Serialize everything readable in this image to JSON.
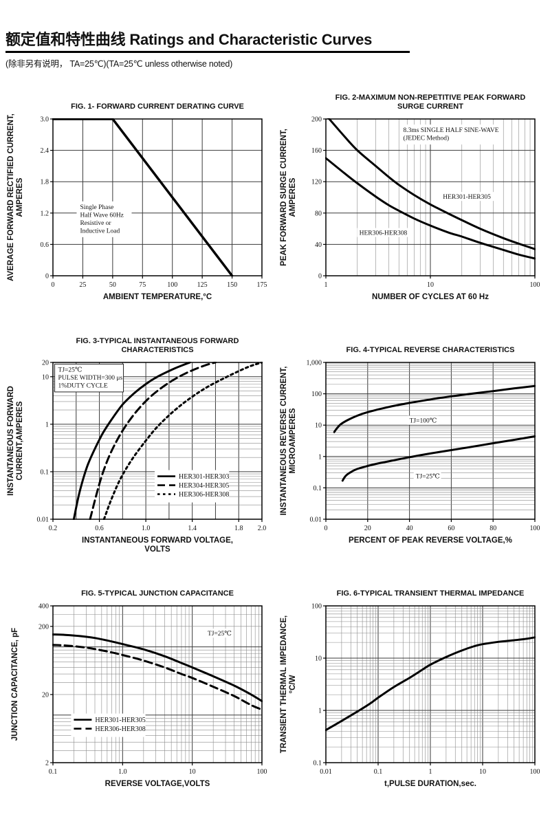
{
  "header": {
    "title": "额定值和特性曲线 Ratings and Characteristic Curves",
    "note": "(除非另有说明， TA=25℃)(TA=25℃  unless otherwise noted)"
  },
  "chart_data": [
    {
      "type": "line",
      "title": [
        "FIG. 1- FORWARD CURRENT DERATING CURVE"
      ],
      "xlabel": [
        "AMBIENT TEMPERATURE,°C"
      ],
      "ylabel": [
        "AVERAGE FORWARD RECTIFIED CURRENT,",
        "AMPERES"
      ],
      "x": {
        "scale": "linear",
        "min": 0,
        "max": 175,
        "ticks": [
          0,
          25,
          50,
          75,
          100,
          125,
          150,
          175
        ],
        "labels": [
          "0",
          "25",
          "50",
          "75",
          "100",
          "125",
          "150",
          "175"
        ],
        "grid_step": 25
      },
      "y": {
        "scale": "linear",
        "min": 0,
        "max": 3,
        "ticks": [
          0,
          0.6,
          1.2,
          1.8,
          2.4,
          3.0
        ],
        "labels": [
          "0",
          "0.6",
          "1.2",
          "1.8",
          "2.4",
          "3.0"
        ],
        "grid_step": 0.6
      },
      "annotations": [
        {
          "lines": [
            "Single Phase",
            "Half Wave 60Hz",
            "Resistive or",
            "Inductive Load"
          ],
          "fx": 0.12,
          "fy": 0.53,
          "boxed": false
        }
      ],
      "labels": [],
      "series": [
        {
          "name": "IF(AV)",
          "style": "solid",
          "width": 3.5,
          "smooth": false,
          "points": [
            [
              0,
              3
            ],
            [
              50,
              3
            ],
            [
              150,
              0
            ]
          ]
        }
      ]
    },
    {
      "type": "line",
      "title": [
        "FIG. 2-MAXIMUM NON-REPETITIVE PEAK FORWARD",
        "SURGE CURRENT"
      ],
      "xlabel": [
        "NUMBER OF CYCLES AT 60 Hz"
      ],
      "ylabel": [
        "PEAK  FORWARD SURGE CURRENT,",
        "AMPERES"
      ],
      "x": {
        "scale": "log",
        "min": 1,
        "max": 100,
        "ticks": [
          1,
          10,
          100
        ],
        "labels": [
          "1",
          "10",
          "100"
        ]
      },
      "y": {
        "scale": "linear",
        "min": 0,
        "max": 200,
        "ticks": [
          0,
          40,
          80,
          120,
          160,
          200
        ],
        "labels": [
          "0",
          "40",
          "80",
          "120",
          "160",
          "200"
        ],
        "grid_step": 40
      },
      "annotations": [
        {
          "lines": [
            "8.3ms SINGLE HALF SINE-WAVE",
            "(JEDEC Method)"
          ],
          "fx": 0.36,
          "fy": 0.04,
          "boxed": false
        }
      ],
      "labels": [
        {
          "text": "HER301-HER305",
          "fx": 0.56,
          "fy": 0.47
        },
        {
          "text": "HER306-HER308",
          "fx": 0.16,
          "fy": 0.7
        }
      ],
      "series": [
        {
          "name": "HER301-HER305",
          "style": "solid",
          "smooth": true,
          "points": [
            [
              1,
              205
            ],
            [
              1.5,
              178
            ],
            [
              2,
              160
            ],
            [
              3,
              140
            ],
            [
              4,
              126
            ],
            [
              5,
              116
            ],
            [
              7,
              103
            ],
            [
              10,
              91
            ],
            [
              15,
              79
            ],
            [
              20,
              71
            ],
            [
              30,
              60
            ],
            [
              50,
              48
            ],
            [
              70,
              41
            ],
            [
              100,
              34
            ]
          ]
        },
        {
          "name": "HER306-HER308",
          "style": "solid",
          "smooth": true,
          "points": [
            [
              1,
              150
            ],
            [
              1.5,
              131
            ],
            [
              2,
              118
            ],
            [
              3,
              101
            ],
            [
              4,
              90
            ],
            [
              5,
              83
            ],
            [
              7,
              73
            ],
            [
              10,
              64
            ],
            [
              15,
              55
            ],
            [
              20,
              50
            ],
            [
              30,
              42
            ],
            [
              50,
              33
            ],
            [
              70,
              27
            ],
            [
              100,
              22
            ]
          ]
        }
      ]
    },
    {
      "type": "line",
      "title": [
        "FIG. 3-TYPICAL INSTANTANEOUS FORWARD",
        "CHARACTERISTICS"
      ],
      "xlabel": [
        "INSTANTANEOUS FORWARD VOLTAGE,",
        "VOLTS"
      ],
      "ylabel": [
        "INSTANTANEOUS FORWARD",
        "CURRENT,AMPERES"
      ],
      "x": {
        "scale": "linear",
        "min": 0.2,
        "max": 2.0,
        "ticks": [
          0.2,
          0.6,
          1.0,
          1.4,
          1.8,
          2.0
        ],
        "labels": [
          "0.2",
          "0.6",
          "1.0",
          "1.4",
          "1.8",
          "2.0"
        ],
        "grid_step": 0.2
      },
      "y": {
        "scale": "log",
        "min": 0.01,
        "max": 20,
        "ticks": [
          20,
          10,
          1,
          0.1,
          0.01
        ],
        "labels": [
          "20",
          "10",
          "1",
          "0.1",
          "0.01"
        ]
      },
      "annotations": [
        {
          "lines": [
            "TJ=25℃",
            "PULSE WIDTH=300 μs",
            "1%DUTY CYCLE"
          ],
          "fx": 0.015,
          "fy": 0.015,
          "boxed": true
        }
      ],
      "labels": [],
      "legend": {
        "fx": 0.5,
        "fy": 0.7,
        "entries": [
          {
            "name": "HER301-HER303",
            "style": "solid"
          },
          {
            "name": "HER304-HER305",
            "style": "dashed"
          },
          {
            "name": "HER306-HER308",
            "style": "dotted"
          }
        ]
      },
      "series": [
        {
          "name": "HER301-HER303",
          "style": "solid",
          "smooth": true,
          "points": [
            [
              0.38,
              0.01
            ],
            [
              0.42,
              0.03
            ],
            [
              0.46,
              0.07
            ],
            [
              0.5,
              0.14
            ],
            [
              0.56,
              0.3
            ],
            [
              0.63,
              0.65
            ],
            [
              0.7,
              1.2
            ],
            [
              0.8,
              2.6
            ],
            [
              0.9,
              4.5
            ],
            [
              1.0,
              7
            ],
            [
              1.1,
              10
            ],
            [
              1.25,
              15
            ],
            [
              1.38,
              20
            ]
          ]
        },
        {
          "name": "HER304-HER305",
          "style": "dashed",
          "smooth": true,
          "points": [
            [
              0.52,
              0.01
            ],
            [
              0.57,
              0.03
            ],
            [
              0.62,
              0.08
            ],
            [
              0.68,
              0.2
            ],
            [
              0.75,
              0.45
            ],
            [
              0.83,
              0.95
            ],
            [
              0.93,
              2
            ],
            [
              1.05,
              4
            ],
            [
              1.2,
              7.5
            ],
            [
              1.35,
              12
            ],
            [
              1.5,
              17
            ],
            [
              1.6,
              20
            ]
          ]
        },
        {
          "name": "HER306-HER308",
          "style": "dotted",
          "smooth": true,
          "points": [
            [
              0.64,
              0.01
            ],
            [
              0.7,
              0.025
            ],
            [
              0.78,
              0.07
            ],
            [
              0.88,
              0.18
            ],
            [
              1.0,
              0.45
            ],
            [
              1.12,
              1.0
            ],
            [
              1.3,
              2.5
            ],
            [
              1.5,
              5.5
            ],
            [
              1.7,
              10
            ],
            [
              1.88,
              16
            ],
            [
              2.0,
              20
            ]
          ]
        }
      ]
    },
    {
      "type": "line",
      "title": [
        "FIG. 4-TYPICAL REVERSE CHARACTERISTICS"
      ],
      "xlabel": [
        "PERCENT OF PEAK REVERSE VOLTAGE,%"
      ],
      "ylabel": [
        "INSTANTANEOUS REVERSE CURRENT,",
        "MICROAMPERES"
      ],
      "x": {
        "scale": "linear",
        "min": 0,
        "max": 100,
        "ticks": [
          0,
          20,
          40,
          60,
          80,
          100
        ],
        "labels": [
          "0",
          "20",
          "40",
          "60",
          "80",
          "100"
        ],
        "grid_step": 20
      },
      "y": {
        "scale": "log",
        "min": 0.01,
        "max": 1000,
        "ticks": [
          1000,
          100,
          10,
          1,
          0.1,
          0.01
        ],
        "labels": [
          "1,000",
          "100",
          "10",
          "1",
          "0.1",
          "0.01"
        ]
      },
      "annotations": [],
      "labels": [
        {
          "text": "TJ=100℃",
          "fx": 0.4,
          "fy": 0.345
        },
        {
          "text": "TJ=25℃",
          "fx": 0.43,
          "fy": 0.7
        }
      ],
      "series": [
        {
          "name": "TJ=100C",
          "style": "solid",
          "smooth": true,
          "points": [
            [
              4,
              6
            ],
            [
              5,
              7.5
            ],
            [
              7,
              10.5
            ],
            [
              10,
              14
            ],
            [
              15,
              20
            ],
            [
              20,
              26
            ],
            [
              30,
              38
            ],
            [
              40,
              51
            ],
            [
              50,
              66
            ],
            [
              60,
              83
            ],
            [
              70,
              101
            ],
            [
              80,
              122
            ],
            [
              90,
              148
            ],
            [
              100,
              178
            ]
          ]
        },
        {
          "name": "TJ=25C",
          "style": "solid",
          "smooth": true,
          "points": [
            [
              8,
              0.17
            ],
            [
              9,
              0.22
            ],
            [
              10,
              0.26
            ],
            [
              12,
              0.32
            ],
            [
              15,
              0.4
            ],
            [
              20,
              0.5
            ],
            [
              25,
              0.6
            ],
            [
              30,
              0.7
            ],
            [
              40,
              0.95
            ],
            [
              50,
              1.25
            ],
            [
              60,
              1.6
            ],
            [
              70,
              2.05
            ],
            [
              80,
              2.65
            ],
            [
              90,
              3.4
            ],
            [
              100,
              4.4
            ]
          ]
        }
      ]
    },
    {
      "type": "line",
      "title": [
        "FIG. 5-TYPICAL JUNCTION CAPACITANCE"
      ],
      "xlabel": [
        "REVERSE VOLTAGE,VOLTS"
      ],
      "ylabel": [
        "JUNCTION CAPACITANCE, pF"
      ],
      "x": {
        "scale": "log",
        "min": 0.1,
        "max": 100,
        "ticks": [
          0.1,
          1,
          10,
          100
        ],
        "labels": [
          "0.1",
          "1.0",
          "10",
          "100"
        ]
      },
      "y": {
        "scale": "log",
        "min": 2,
        "max": 400,
        "ticks": [
          400,
          200,
          20,
          2
        ],
        "labels": [
          "400",
          "200",
          "20",
          "2"
        ]
      },
      "annotations": [],
      "labels": [
        {
          "text": "TJ=25℃",
          "fx": 0.74,
          "fy": 0.15
        }
      ],
      "legend": {
        "fx": 0.1,
        "fy": 0.7,
        "entries": [
          {
            "name": "HER301-HER305",
            "style": "solid"
          },
          {
            "name": "HER306-HER308",
            "style": "dashed"
          }
        ]
      },
      "series": [
        {
          "name": "HER301-HER305",
          "style": "solid",
          "smooth": true,
          "points": [
            [
              0.1,
              152
            ],
            [
              0.15,
              150
            ],
            [
              0.25,
              144
            ],
            [
              0.4,
              135
            ],
            [
              0.7,
              120
            ],
            [
              1,
              110
            ],
            [
              2,
              92
            ],
            [
              4,
              73
            ],
            [
              7,
              58
            ],
            [
              10,
              50
            ],
            [
              20,
              37
            ],
            [
              40,
              27
            ],
            [
              70,
              20
            ],
            [
              100,
              16
            ]
          ]
        },
        {
          "name": "HER306-HER308",
          "style": "dashed",
          "smooth": true,
          "points": [
            [
              0.1,
              107
            ],
            [
              0.15,
              105
            ],
            [
              0.25,
              100
            ],
            [
              0.4,
              93
            ],
            [
              0.7,
              83
            ],
            [
              1,
              76
            ],
            [
              2,
              63
            ],
            [
              4,
              50
            ],
            [
              7,
              40
            ],
            [
              10,
              35
            ],
            [
              20,
              26
            ],
            [
              40,
              19
            ],
            [
              70,
              14
            ],
            [
              100,
              12
            ]
          ]
        }
      ]
    },
    {
      "type": "line",
      "title": [
        "FIG. 6-TYPICAL TRANSIENT THERMAL IMPEDANCE"
      ],
      "xlabel": [
        "t,PULSE DURATION,sec."
      ],
      "ylabel": [
        "TRANSIENT THERMAL IMPEDANCE,",
        "°C/W"
      ],
      "x": {
        "scale": "log",
        "min": 0.01,
        "max": 100,
        "ticks": [
          0.01,
          0.1,
          1,
          10,
          100
        ],
        "labels": [
          "0.01",
          "0.1",
          "1",
          "10",
          "100"
        ]
      },
      "y": {
        "scale": "log",
        "min": 0.1,
        "max": 100,
        "ticks": [
          100,
          10,
          1,
          0.1
        ],
        "labels": [
          "100",
          "10",
          "1",
          "0.1"
        ]
      },
      "annotations": [],
      "labels": [],
      "series": [
        {
          "name": "thermal-impedance",
          "style": "solid",
          "smooth": true,
          "points": [
            [
              0.01,
              0.42
            ],
            [
              0.02,
              0.63
            ],
            [
              0.04,
              0.95
            ],
            [
              0.07,
              1.35
            ],
            [
              0.1,
              1.75
            ],
            [
              0.2,
              2.8
            ],
            [
              0.4,
              4.2
            ],
            [
              0.7,
              6
            ],
            [
              1,
              7.5
            ],
            [
              2,
              10.5
            ],
            [
              4,
              14
            ],
            [
              7,
              17
            ],
            [
              10,
              18.5
            ],
            [
              20,
              20.5
            ],
            [
              40,
              22
            ],
            [
              70,
              23.5
            ],
            [
              100,
              25
            ]
          ]
        }
      ]
    }
  ]
}
